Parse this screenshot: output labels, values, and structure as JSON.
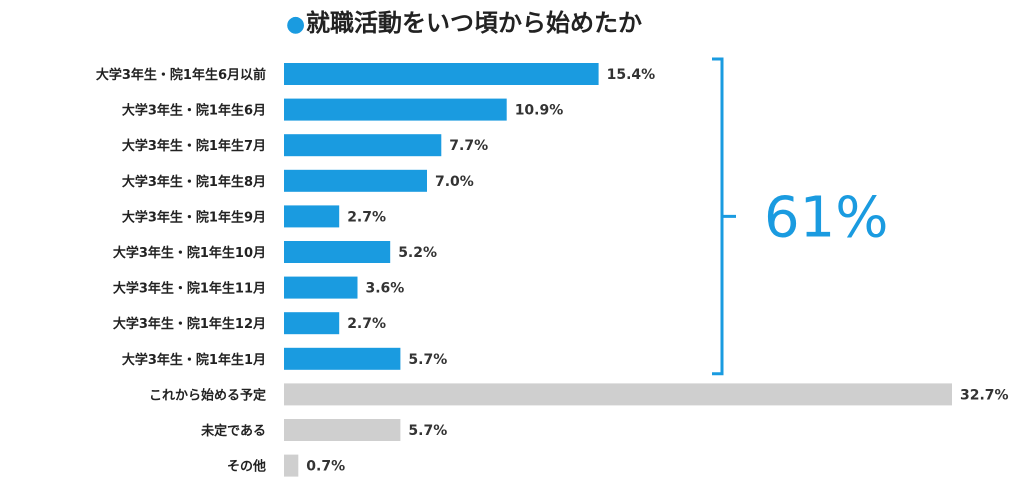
{
  "chart_data": {
    "type": "bar",
    "orientation": "horizontal",
    "title": "就職活動をいつ頃から始めたか",
    "title_marker": "●",
    "categories": [
      "大学3年生・院1年生6月以前",
      "大学3年生・院1年生6月",
      "大学3年生・院1年生7月",
      "大学3年生・院1年生8月",
      "大学3年生・院1年生9月",
      "大学3年生・院1年生10月",
      "大学3年生・院1年生11月",
      "大学3年生・院1年生12月",
      "大学3年生・院1年生1月",
      "これから始める予定",
      "未定である",
      "その他"
    ],
    "values": [
      15.4,
      10.9,
      7.7,
      7.0,
      2.7,
      5.2,
      3.6,
      2.7,
      5.7,
      32.7,
      5.7,
      0.7
    ],
    "value_labels": [
      "15.4%",
      "10.9%",
      "7.7%",
      "7.0%",
      "2.7%",
      "5.2%",
      "3.6%",
      "2.7%",
      "5.7%",
      "32.7%",
      "5.7%",
      "0.7%"
    ],
    "bar_colors": [
      "#1a9be0",
      "#1a9be0",
      "#1a9be0",
      "#1a9be0",
      "#1a9be0",
      "#1a9be0",
      "#1a9be0",
      "#1a9be0",
      "#1a9be0",
      "#cfcfcf",
      "#cfcfcf",
      "#cfcfcf"
    ],
    "xlim": [
      0,
      32.7
    ],
    "grid": false,
    "legend": "none",
    "annotation": {
      "text": "61%",
      "bracket_range": [
        0,
        8
      ],
      "color": "#1a9be0"
    }
  },
  "colors": {
    "accent": "#1a9be0",
    "muted": "#cfcfcf",
    "text": "#222222"
  }
}
